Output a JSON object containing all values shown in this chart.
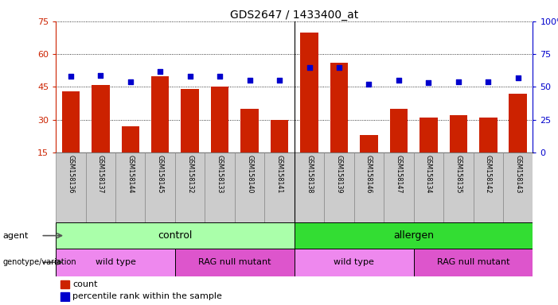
{
  "title": "GDS2647 / 1433400_at",
  "samples": [
    "GSM158136",
    "GSM158137",
    "GSM158144",
    "GSM158145",
    "GSM158132",
    "GSM158133",
    "GSM158140",
    "GSM158141",
    "GSM158138",
    "GSM158139",
    "GSM158146",
    "GSM158147",
    "GSM158134",
    "GSM158135",
    "GSM158142",
    "GSM158143"
  ],
  "counts": [
    43,
    46,
    27,
    50,
    44,
    45,
    35,
    30,
    70,
    56,
    23,
    35,
    31,
    32,
    31,
    42
  ],
  "percentiles": [
    58,
    59,
    54,
    62,
    58,
    58,
    55,
    55,
    65,
    65,
    52,
    55,
    53,
    54,
    54,
    57
  ],
  "ylim_left": [
    15,
    75
  ],
  "ylim_right": [
    0,
    100
  ],
  "yticks_left": [
    15,
    30,
    45,
    60,
    75
  ],
  "yticks_right": [
    0,
    25,
    50,
    75,
    100
  ],
  "bar_color": "#cc2200",
  "dot_color": "#0000cc",
  "agent_groups": [
    {
      "label": "control",
      "start": 0,
      "end": 8,
      "color": "#aaffaa"
    },
    {
      "label": "allergen",
      "start": 8,
      "end": 16,
      "color": "#33dd33"
    }
  ],
  "genotype_groups": [
    {
      "label": "wild type",
      "start": 0,
      "end": 4,
      "color": "#ee88ee"
    },
    {
      "label": "RAG null mutant",
      "start": 4,
      "end": 8,
      "color": "#dd55cc"
    },
    {
      "label": "wild type",
      "start": 8,
      "end": 12,
      "color": "#ee88ee"
    },
    {
      "label": "RAG null mutant",
      "start": 12,
      "end": 16,
      "color": "#dd55cc"
    }
  ],
  "fig_width": 7.01,
  "fig_height": 3.84,
  "dpi": 100
}
